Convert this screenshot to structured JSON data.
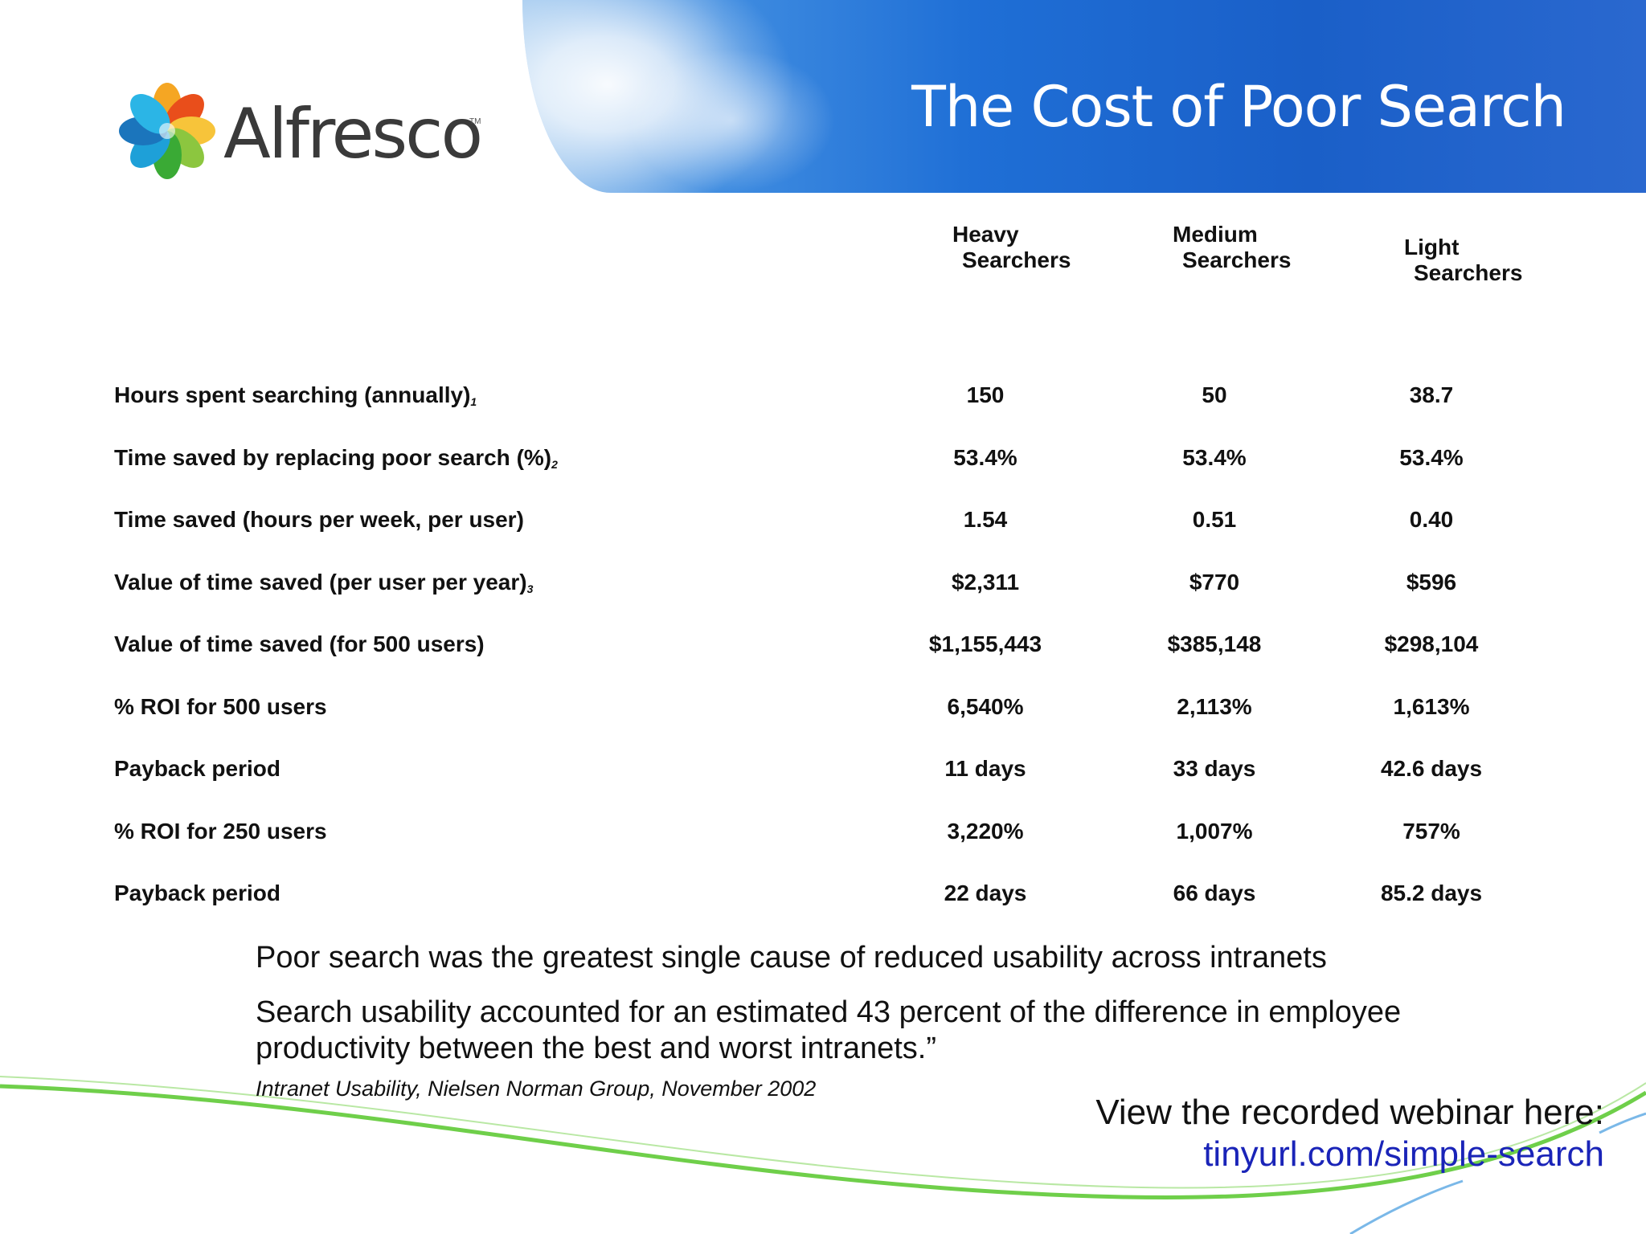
{
  "slide": {
    "title": "The Cost of Poor Search",
    "logo_text": "Alfresco",
    "logo_tm": "TM"
  },
  "table": {
    "columns": [
      {
        "line1": "Heavy",
        "line2": "Searchers"
      },
      {
        "line1": "Medium",
        "line2": "Searchers"
      },
      {
        "line1": "Light",
        "line2": "Searchers"
      }
    ],
    "rows": [
      {
        "label": "Hours spent searching (annually)",
        "note": "1",
        "values": [
          "150",
          "50",
          "38.7"
        ]
      },
      {
        "label": "Time saved by replacing poor search (%)",
        "note": "2",
        "values": [
          "53.4%",
          "53.4%",
          "53.4%"
        ]
      },
      {
        "label": "Time saved (hours per week, per user)",
        "note": "",
        "values": [
          "1.54",
          "0.51",
          "0.40"
        ]
      },
      {
        "label": "Value of time saved (per user per year)",
        "note": "3",
        "values": [
          "$2,311",
          "$770",
          "$596"
        ]
      },
      {
        "label": "Value of time saved (for 500 users)",
        "note": "",
        "values": [
          "$1,155,443",
          "$385,148",
          "$298,104"
        ]
      },
      {
        "label": "% ROI for 500 users",
        "note": "",
        "values": [
          "6,540%",
          "2,113%",
          "1,613%"
        ]
      },
      {
        "label": "Payback period",
        "note": "",
        "values": [
          "11 days",
          "33 days",
          "42.6 days"
        ]
      },
      {
        "label": "% ROI for 250 users",
        "note": "",
        "values": [
          "3,220%",
          "1,007%",
          "757%"
        ]
      },
      {
        "label": "Payback period",
        "note": "",
        "values": [
          "22 days",
          "66 days",
          "85.2 days"
        ]
      }
    ]
  },
  "quote": {
    "line1": "Poor search was the greatest single cause of reduced usability across intranets",
    "line2": "Search usability accounted for an estimated 43 percent of the difference in employee productivity between the best and worst intranets.”",
    "citation": "Intranet Usability, Nielsen Norman Group, November 2002"
  },
  "footer": {
    "webinar_text": "View the recorded webinar here:",
    "url": "tinyurl.com/simple-search"
  },
  "colors": {
    "banner_blue": "#1f6fd6",
    "link_blue": "#1a24b8",
    "swoosh_green": "#6fcf4a"
  }
}
